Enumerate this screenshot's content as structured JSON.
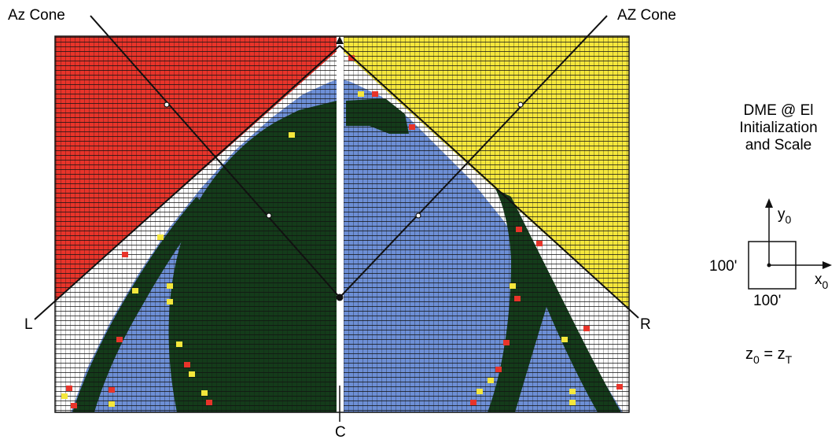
{
  "labels": {
    "az_cone_left": "Az Cone",
    "az_cone_right": "AZ Cone",
    "point_left": "L",
    "point_right": "R",
    "point_center": "C"
  },
  "side_panel": {
    "title_line1": "DME @ El",
    "title_line2": "Initialization",
    "title_line3": "and Scale"
  },
  "inset": {
    "y_axis_main": "y",
    "y_axis_sub": "0",
    "x_axis_main": "x",
    "x_axis_sub": "0",
    "height_label": "100'",
    "width_label": "100'"
  },
  "equation": {
    "left_main": "z",
    "left_sub": "0",
    "equals": "=",
    "right_main": "z",
    "right_sub": "T"
  },
  "colors": {
    "red_region": "#e8342a",
    "yellow_region": "#f5e73c",
    "blue_region": "#6d8fd6",
    "dark_green_region": "#143b1a",
    "white_band": "#ffffff",
    "grid_lines": "#1a1a1a"
  }
}
